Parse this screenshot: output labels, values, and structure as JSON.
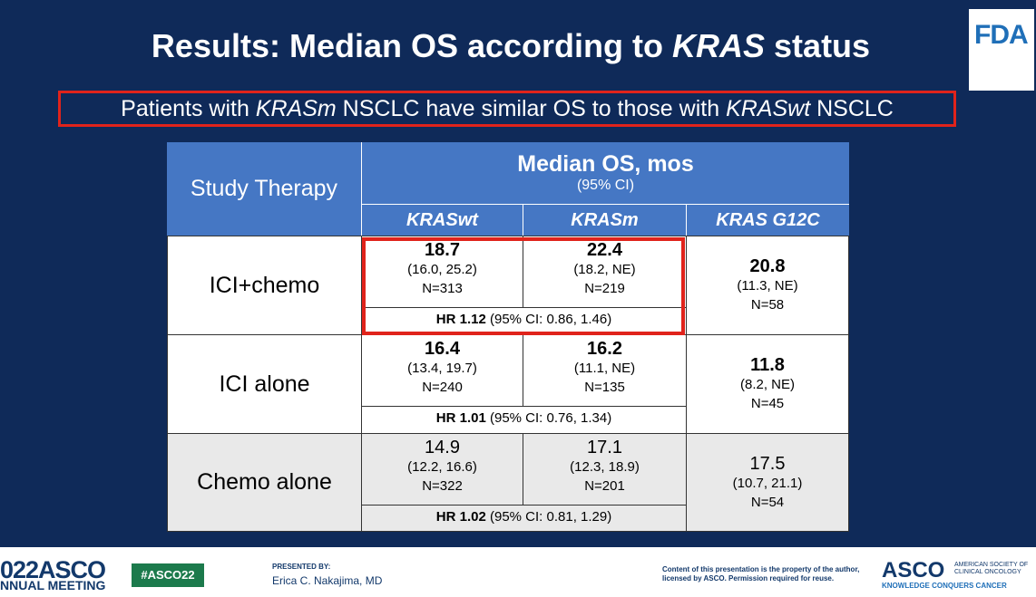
{
  "title": {
    "pre": "Results: Median OS according to ",
    "italic": "KRAS",
    "post": " status"
  },
  "logo_text": "FDA",
  "subtitle": {
    "p1": "Patients with ",
    "i1": "KRASm",
    "p2": " NSCLC have similar OS to those with ",
    "i2": "KRASwt",
    "p3": " NSCLC"
  },
  "table": {
    "header_therapy": "Study Therapy",
    "header_main": "Median OS, mos",
    "header_ci": "(95% CI)",
    "col_wt": "KRASwt",
    "col_m": "KRASm",
    "col_g12c": "KRAS G12C",
    "rows": [
      {
        "label": "ICI+chemo",
        "wt": {
          "v": "18.7",
          "ci": "(16.0, 25.2)",
          "n": "N=313"
        },
        "m": {
          "v": "22.4",
          "ci": "(18.2, NE)",
          "n": "N=219"
        },
        "hr_b": "HR 1.12",
        "hr_rest": " (95% CI: 0.86, 1.46)",
        "g": {
          "v": "20.8",
          "ci": "(11.3, NE)",
          "n": "N=58"
        }
      },
      {
        "label": "ICI alone",
        "wt": {
          "v": "16.4",
          "ci": "(13.4, 19.7)",
          "n": "N=240"
        },
        "m": {
          "v": "16.2",
          "ci": "(11.1, NE)",
          "n": "N=135"
        },
        "hr_b": "HR 1.01",
        "hr_rest": " (95% CI: 0.76, 1.34)",
        "g": {
          "v": "11.8",
          "ci": "(8.2, NE)",
          "n": "N=45"
        }
      },
      {
        "label": "Chemo alone",
        "wt": {
          "v": "14.9",
          "ci": "(12.2, 16.6)",
          "n": "N=322"
        },
        "m": {
          "v": "17.1",
          "ci": "(12.3, 18.9)",
          "n": "N=201"
        },
        "hr_b": "HR 1.02",
        "hr_rest": " (95% CI: 0.81, 1.29)",
        "g": {
          "v": "17.5",
          "ci": "(10.7, 21.1)",
          "n": "N=54"
        }
      }
    ]
  },
  "footer": {
    "asco_year": "022ASCO",
    "meeting": "NNUAL MEETING",
    "hashtag": "#ASCO22",
    "presented_by": "PRESENTED BY:",
    "presenter": "Erica C. Nakajima, MD",
    "copyright": "Content of this presentation is the property of the author, licensed by ASCO. Permission required for reuse.",
    "logo": "ASCO",
    "society": "AMERICAN SOCIETY OF CLINICAL ONCOLOGY",
    "tagline": "KNOWLEDGE CONQUERS CANCER"
  },
  "colors": {
    "background": "#0f2a59",
    "header": "#4577c4",
    "highlight": "#e0231b"
  }
}
